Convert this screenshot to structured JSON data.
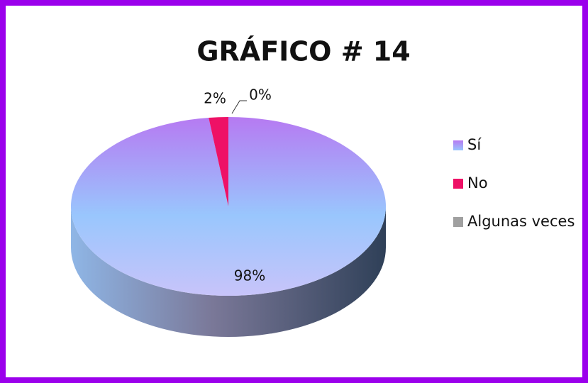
{
  "chart_data": {
    "type": "pie",
    "title": "GRÁFICO # 14",
    "categories": [
      "Sí",
      "No",
      "Algunas veces"
    ],
    "values": [
      98,
      2,
      0
    ],
    "value_labels": [
      "98%",
      "2%",
      "0%"
    ],
    "colors": [
      "#a9b8f5",
      "#ee1166",
      "#a0a0a0"
    ],
    "legend": "right"
  }
}
